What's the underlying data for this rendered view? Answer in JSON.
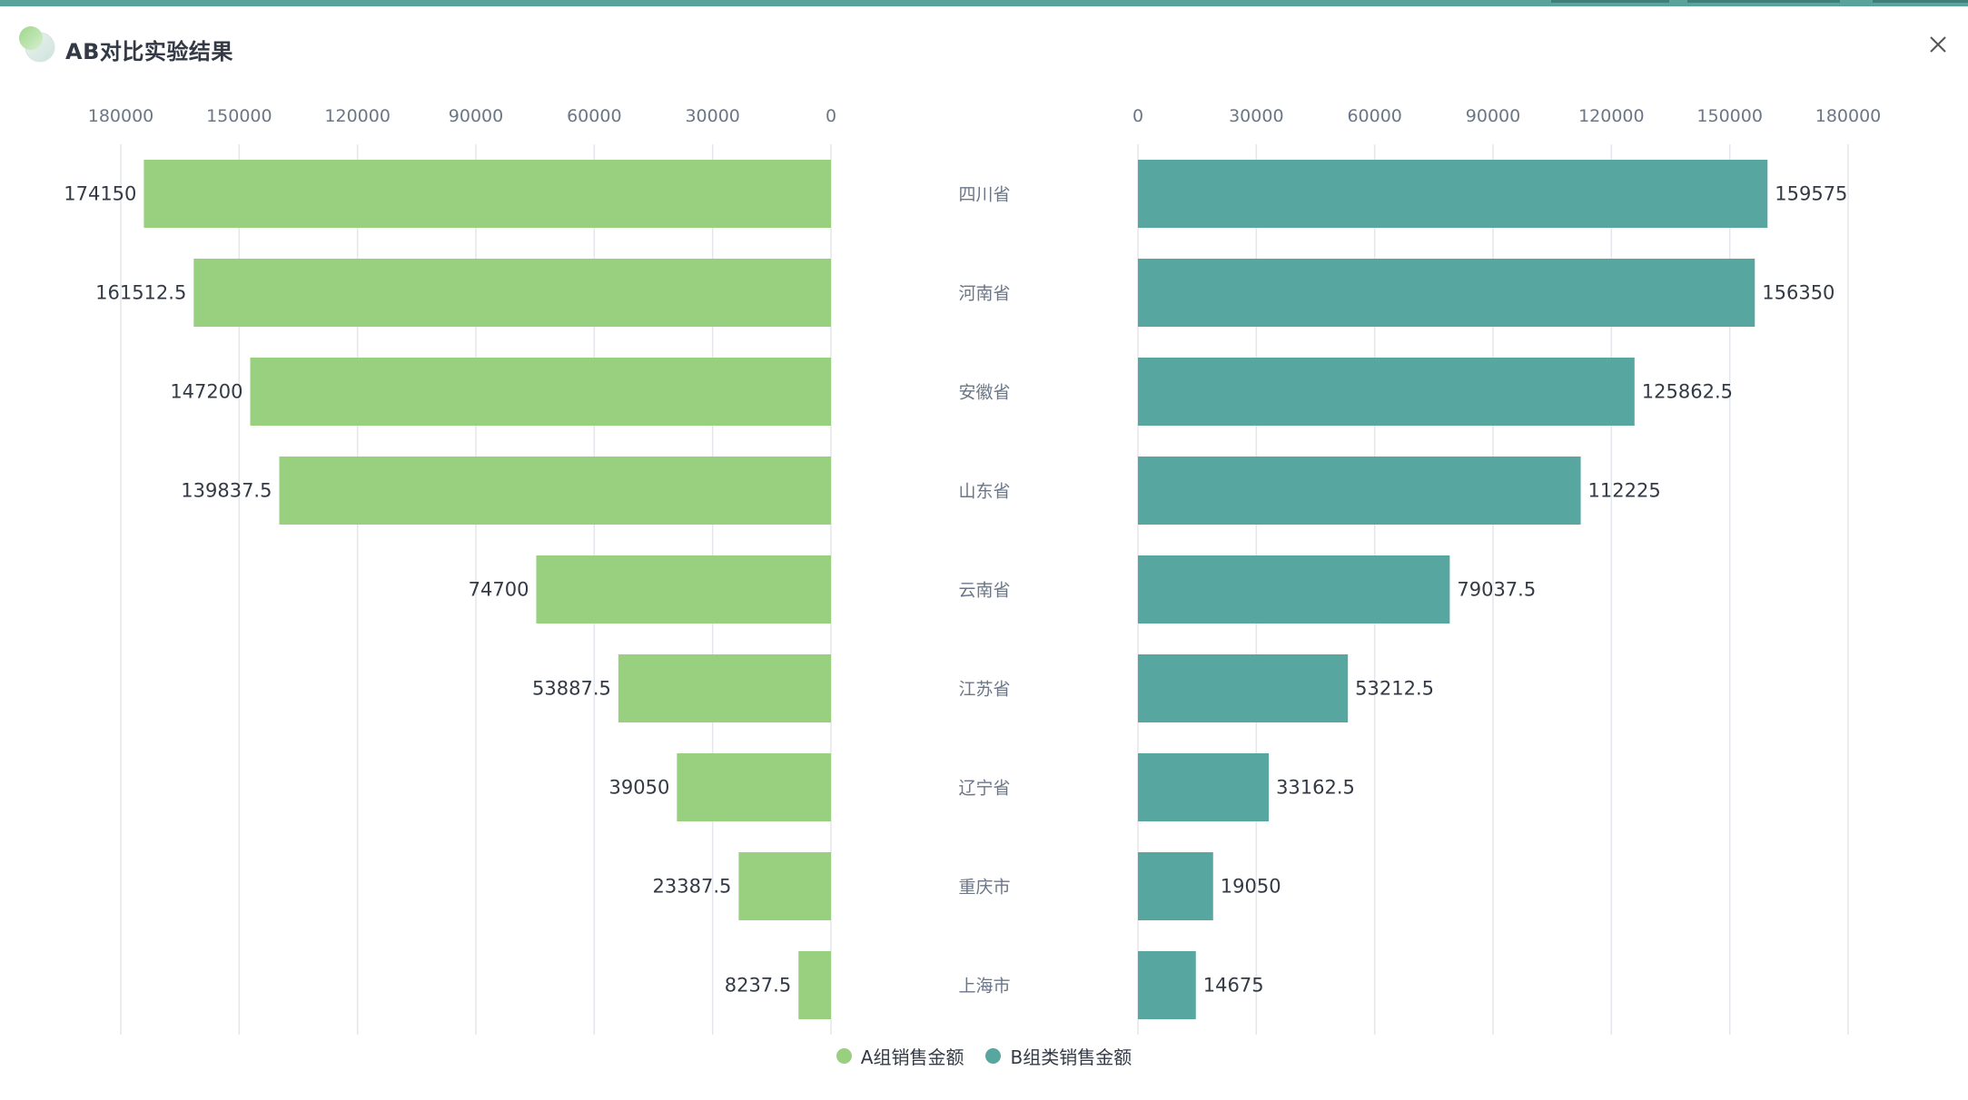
{
  "window": {
    "title": "AB对比实验结果"
  },
  "colors": {
    "accent": "#5aa39d",
    "series_a": "#98d07f",
    "series_b": "#57a6a0",
    "grid": "#e3e6ea"
  },
  "icons": {
    "logo": "overlapping-circles-logo",
    "close": "close-icon"
  },
  "chart_data": {
    "type": "bar",
    "orientation": "horizontal-butterfly",
    "categories": [
      "四川省",
      "河南省",
      "安徽省",
      "山东省",
      "云南省",
      "江苏省",
      "辽宁省",
      "重庆市",
      "上海市"
    ],
    "series": [
      {
        "name": "A组销售金额",
        "side": "left",
        "values": [
          174150,
          161512.5,
          147200,
          139837.5,
          74700,
          53887.5,
          39050,
          23387.5,
          8237.5
        ]
      },
      {
        "name": "B组类销售金额",
        "side": "right",
        "values": [
          159575,
          156350,
          125862.5,
          112225,
          79037.5,
          53212.5,
          33162.5,
          19050,
          14675
        ]
      }
    ],
    "xlim": [
      0,
      180000
    ],
    "ticks": [
      0,
      30000,
      60000,
      90000,
      120000,
      150000,
      180000
    ],
    "tick_labels": [
      "0",
      "30000",
      "60000",
      "90000",
      "120000",
      "150000",
      "180000"
    ],
    "grid": true,
    "legend": "bottom-center",
    "data_labels": true
  }
}
